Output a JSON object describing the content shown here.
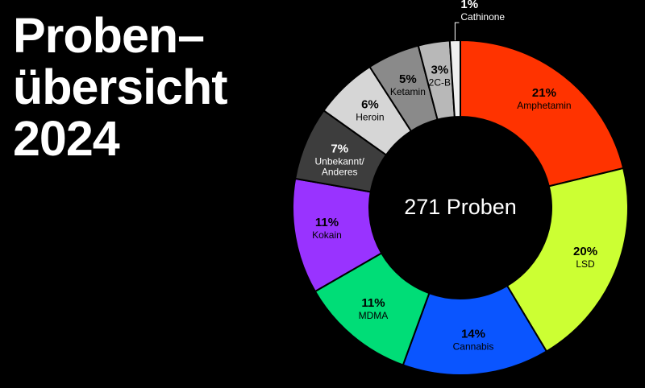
{
  "title": {
    "line1": "Proben–",
    "line2": "übersicht",
    "line3": "2024"
  },
  "chart_data": {
    "type": "pie",
    "variant": "donut",
    "title": "Probenübersicht 2024",
    "center_label": "271 Proben",
    "total_samples": 271,
    "slices": [
      {
        "label": "Amphetamin",
        "value": 21,
        "display": "21%",
        "color": "#ff3300",
        "text_color": "#000000"
      },
      {
        "label": "LSD",
        "value": 20,
        "display": "20%",
        "color": "#ccff33",
        "text_color": "#000000"
      },
      {
        "label": "Cannabis",
        "value": 14,
        "display": "14%",
        "color": "#0a55ff",
        "text_color": "#000000"
      },
      {
        "label": "MDMA",
        "value": 11,
        "display": "11%",
        "color": "#00dd77",
        "text_color": "#000000"
      },
      {
        "label": "Kokain",
        "value": 11,
        "display": "11%",
        "color": "#9933ff",
        "text_color": "#000000"
      },
      {
        "label": "Unbekannt/\nAnderes",
        "value": 7,
        "display": "7%",
        "color": "#3d3d3d",
        "text_color": "#ffffff"
      },
      {
        "label": "Heroin",
        "value": 6,
        "display": "6%",
        "color": "#d6d6d6",
        "text_color": "#000000"
      },
      {
        "label": "Ketamin",
        "value": 5,
        "display": "5%",
        "color": "#8a8a8a",
        "text_color": "#000000"
      },
      {
        "label": "2C-B",
        "value": 3,
        "display": "3%",
        "color": "#b8b8b8",
        "text_color": "#000000"
      },
      {
        "label": "Cathinone",
        "value": 1,
        "display": "1%",
        "color": "#efefef",
        "text_color": "#ffffff",
        "outside": true
      }
    ]
  }
}
